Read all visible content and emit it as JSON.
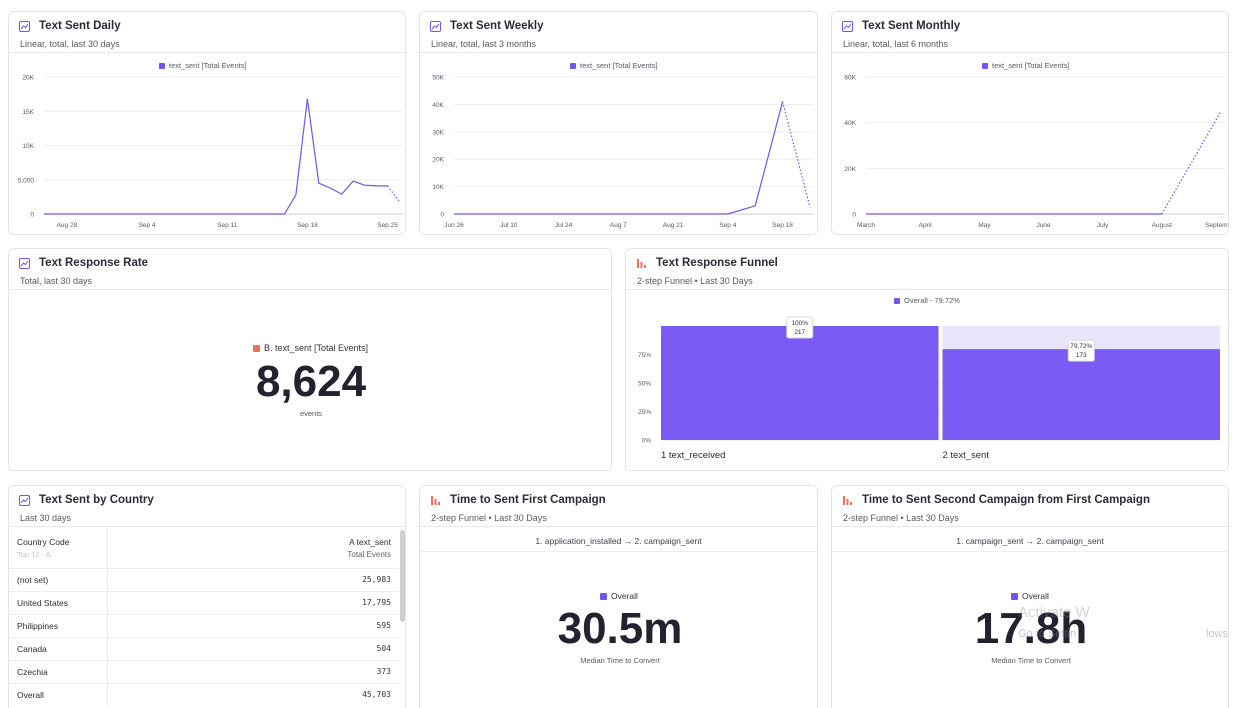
{
  "colors": {
    "accent": "#7055e8",
    "response_rate_swatch": "#e8735a",
    "funnel_icon": "#e8735a",
    "insight_icon": "#7055e8"
  },
  "cards": {
    "daily": {
      "title": "Text Sent Daily",
      "subtitle": "Linear, total, last 30 days",
      "legend": "text_sent [Total Events]",
      "y_ticks": [
        "20K",
        "15K",
        "10K",
        "5,000",
        "0"
      ],
      "x_ticks": [
        "Aug 28",
        "Sep 4",
        "Sep 11",
        "Sep 18",
        "Sep 25"
      ]
    },
    "weekly": {
      "title": "Text Sent Weekly",
      "subtitle": "Linear, total, last 3 months",
      "legend": "text_sent [Total Events]",
      "y_ticks": [
        "50K",
        "40K",
        "30K",
        "20K",
        "10K",
        "0"
      ],
      "x_ticks": [
        "Jun 26",
        "Jul 10",
        "Jul 24",
        "Aug 7",
        "Aug 21",
        "Sep 4",
        "Sep 18"
      ]
    },
    "monthly": {
      "title": "Text Sent Monthly",
      "subtitle": "Linear, total, last 6 months",
      "legend": "text_sent [Total Events]",
      "y_ticks": [
        "60K",
        "40K",
        "20K",
        "0"
      ],
      "x_ticks": [
        "March",
        "April",
        "May",
        "June",
        "July",
        "August",
        "September"
      ]
    },
    "response_rate": {
      "title": "Text Response Rate",
      "subtitle": "Total, last 30 days",
      "legend": "B. text_sent [Total Events]",
      "value": "8,624",
      "unit": "events"
    },
    "funnel": {
      "title": "Text Response Funnel",
      "subtitle": "2-step Funnel • Last 30 Days",
      "legend": "Overall - 79.72%",
      "y_ticks": [
        "75%",
        "50%",
        "25%",
        "0%"
      ],
      "steps": [
        {
          "index": "1",
          "name": "text_received",
          "pct_label": "100%",
          "count": "217"
        },
        {
          "index": "2",
          "name": "text_sent",
          "pct_label": "79.72%",
          "count": "173"
        }
      ]
    },
    "country": {
      "title": "Text Sent by Country",
      "subtitle": "Last 30 days",
      "col1_header": "Country Code",
      "col1_sub": "Top 12 - A",
      "col2_header": "A text_sent",
      "col2_sub": "Total Events",
      "rows": [
        {
          "name": "(not set)",
          "value": "25,983"
        },
        {
          "name": "United States",
          "value": "17,795"
        },
        {
          "name": "Philippines",
          "value": "595"
        },
        {
          "name": "Canada",
          "value": "504"
        },
        {
          "name": "Czechia",
          "value": "373"
        }
      ],
      "total_label": "Overall",
      "total_value": "45,703"
    },
    "first_campaign": {
      "title": "Time to Sent First Campaign",
      "subtitle": "2-step Funnel • Last 30 Days",
      "steps_text": "1. application_installed → 2. campaign_sent",
      "legend": "Overall",
      "value": "30.5m",
      "caption": "Median Time to Convert"
    },
    "second_campaign": {
      "title": "Time to Sent Second Campaign from First Campaign",
      "subtitle": "2-step Funnel • Last 30 Days",
      "steps_text": "1. campaign_sent → 2. campaign_sent",
      "legend": "Overall",
      "value": "17.8h",
      "caption": "Median Time to Convert"
    }
  },
  "watermark": {
    "line1": "Activate W",
    "line2": "Go to Settin",
    "line3": "lows."
  },
  "chart_data": [
    {
      "type": "line",
      "title": "Text Sent Daily",
      "x": [
        "Aug 26",
        "Aug 27",
        "Aug 28",
        "Aug 29",
        "Aug 30",
        "Aug 31",
        "Sep 1",
        "Sep 2",
        "Sep 3",
        "Sep 4",
        "Sep 5",
        "Sep 6",
        "Sep 7",
        "Sep 8",
        "Sep 9",
        "Sep 10",
        "Sep 11",
        "Sep 12",
        "Sep 13",
        "Sep 14",
        "Sep 15",
        "Sep 16",
        "Sep 17",
        "Sep 18",
        "Sep 19",
        "Sep 20",
        "Sep 21",
        "Sep 22",
        "Sep 23",
        "Sep 24",
        "Sep 25",
        "Sep 26"
      ],
      "series": [
        {
          "name": "text_sent [Total Events]",
          "values": [
            0,
            0,
            0,
            0,
            0,
            0,
            0,
            0,
            0,
            0,
            0,
            0,
            0,
            0,
            0,
            0,
            0,
            0,
            0,
            0,
            0,
            0,
            2800,
            16800,
            4500,
            3800,
            2900,
            4800,
            4200,
            4100,
            4100,
            1900
          ]
        }
      ],
      "ylim": [
        0,
        20000
      ],
      "legend": "top"
    },
    {
      "type": "line",
      "title": "Text Sent Weekly",
      "x": [
        "Jun 26",
        "Jul 3",
        "Jul 10",
        "Jul 17",
        "Jul 24",
        "Jul 31",
        "Aug 7",
        "Aug 14",
        "Aug 21",
        "Aug 28",
        "Sep 4",
        "Sep 11",
        "Sep 18",
        "Sep 25"
      ],
      "series": [
        {
          "name": "text_sent [Total Events]",
          "values": [
            0,
            0,
            0,
            0,
            0,
            0,
            0,
            0,
            0,
            0,
            0,
            3000,
            41000,
            2500
          ]
        }
      ],
      "ylim": [
        0,
        50000
      ],
      "legend": "top"
    },
    {
      "type": "line",
      "title": "Text Sent Monthly",
      "x": [
        "March",
        "April",
        "May",
        "June",
        "July",
        "August",
        "September"
      ],
      "series": [
        {
          "name": "text_sent [Total Events]",
          "values": [
            0,
            0,
            0,
            0,
            0,
            0,
            45000
          ]
        }
      ],
      "ylim": [
        0,
        60000
      ],
      "legend": "top"
    },
    {
      "type": "bar",
      "title": "Text Response Funnel",
      "categories": [
        "text_received",
        "text_sent"
      ],
      "series": [
        {
          "name": "Overall",
          "values": [
            100,
            79.72
          ]
        }
      ],
      "ylim": [
        0,
        100
      ],
      "legend": "top"
    }
  ]
}
